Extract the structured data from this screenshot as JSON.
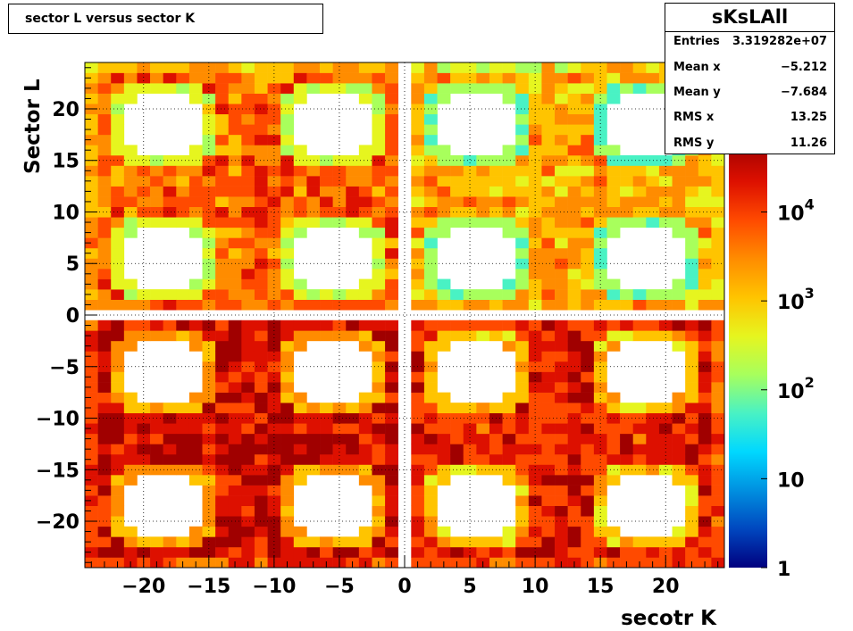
{
  "chart_data": {
    "type": "heatmap",
    "title": "sector L versus sector K",
    "xlabel": "secotr K",
    "ylabel": "Sector L",
    "xlim": [
      -24.5,
      24.5
    ],
    "ylim": [
      -24.5,
      24.5
    ],
    "x_ticks": [
      "−20",
      "−15",
      "−10",
      "−5",
      "0",
      "5",
      "10",
      "15",
      "20"
    ],
    "x_tick_values": [
      -20,
      -15,
      -10,
      -5,
      0,
      5,
      10,
      15,
      20
    ],
    "y_ticks": [
      "−20",
      "−15",
      "−10",
      "−5",
      "0",
      "5",
      "10",
      "15",
      "20"
    ],
    "y_tick_values": [
      -20,
      -15,
      -10,
      -5,
      0,
      5,
      10,
      15,
      20
    ],
    "z_scale": "log",
    "zlim": [
      1,
      60000
    ],
    "colorbar_labels": [
      {
        "base": "1",
        "exp": "",
        "value": 1
      },
      {
        "base": "10",
        "exp": "",
        "value": 10
      },
      {
        "base": "10",
        "exp": "2",
        "value": 100
      },
      {
        "base": "10",
        "exp": "3",
        "value": 1000
      },
      {
        "base": "10",
        "exp": "4",
        "value": 10000
      }
    ],
    "grid": true,
    "quadrant_levels": {
      "bottom_left": 20000,
      "bottom_right": 12000,
      "top_left": 4000,
      "top_right": 1500
    }
  },
  "stats": {
    "name": "sKsLAll",
    "rows": [
      {
        "label": "Entries",
        "value": "3.319282e+07"
      },
      {
        "label": "Mean x",
        "value": "−5.212"
      },
      {
        "label": "Mean y",
        "value": "−7.684"
      },
      {
        "label": "RMS x",
        "value": "13.25"
      },
      {
        "label": "RMS y",
        "value": "11.26"
      }
    ]
  },
  "palette": [
    "#00007f",
    "#0047bf",
    "#0090e0",
    "#00d8ff",
    "#49f2c4",
    "#a8ff5c",
    "#e6f51f",
    "#ffc400",
    "#ff8c00",
    "#ff4a00",
    "#dd1000",
    "#a00000"
  ]
}
